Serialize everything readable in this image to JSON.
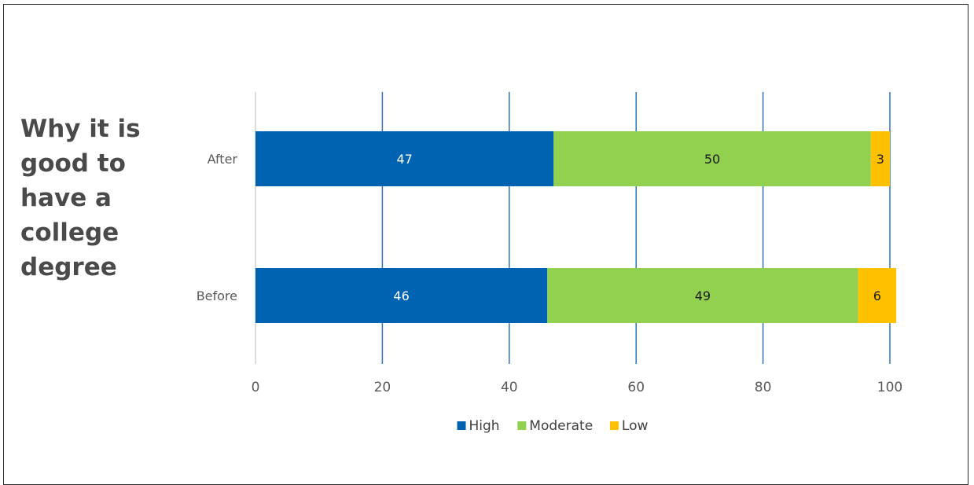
{
  "title": "Why it is\ngood to\nhave a\ncollege\ndegree",
  "chart_data": {
    "type": "bar",
    "orientation": "horizontal",
    "stacked": true,
    "categories": [
      "After",
      "Before"
    ],
    "series": [
      {
        "name": "High",
        "values": [
          47,
          46
        ],
        "color": "#0063b1",
        "label_color": "#ffffff"
      },
      {
        "name": "Moderate",
        "values": [
          50,
          49
        ],
        "color": "#92d050",
        "label_color": "#1a1a1a"
      },
      {
        "name": "Low",
        "values": [
          3,
          6
        ],
        "color": "#ffc000",
        "label_color": "#1a1a1a"
      }
    ],
    "xlim": [
      0,
      100
    ],
    "xticks": [
      0,
      20,
      40,
      60,
      80,
      100
    ],
    "grid": "vertical",
    "grid_color": "#2e75b6",
    "legend_position": "bottom"
  }
}
